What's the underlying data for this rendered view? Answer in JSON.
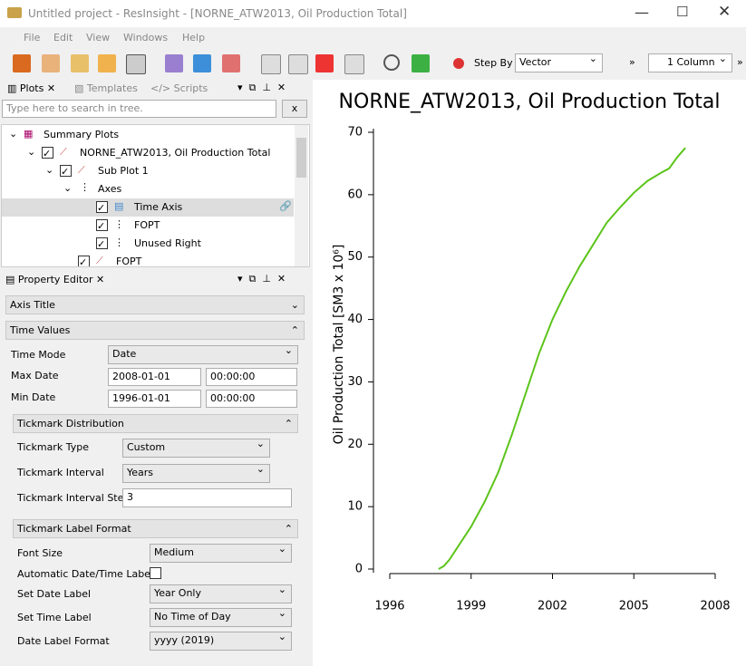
{
  "window": {
    "title": "Untitled project - ResInsight - [NORNE_ATW2013, Oil Production Total]"
  },
  "menu": [
    "File",
    "Edit",
    "View",
    "Windows",
    "Help"
  ],
  "toolbar": {
    "step_by_label": "Step By",
    "step_by_value": "Vector",
    "columns": "1 Column"
  },
  "plots_panel": {
    "tabs": [
      "Plots",
      "Templates",
      "Scripts"
    ],
    "search_placeholder": "Type here to search in tree.",
    "search_button": "x",
    "tree": [
      "Summary Plots",
      "NORNE_ATW2013, Oil Production Total",
      "Sub Plot 1",
      "Axes",
      "Time Axis",
      "FOPT",
      "Unused Right",
      "FOPT"
    ]
  },
  "property_editor": {
    "title": "Property Editor",
    "sections": [
      "Axis Title",
      "Time Values",
      "Tickmark Distribution",
      "Tickmark Label Format"
    ],
    "time_values": [
      [
        "Time Mode",
        "Date"
      ],
      [
        "Max Date",
        "2008-01-01",
        "00:00:00"
      ],
      [
        "Min Date",
        "1996-01-01",
        "00:00:00"
      ]
    ],
    "tickmark_distribution": [
      [
        "Tickmark Type",
        "Custom"
      ],
      [
        "Tickmark Interval",
        "Years"
      ],
      [
        "Tickmark Interval Step",
        "3"
      ]
    ],
    "tickmark_label_format": [
      [
        "Font Size",
        "Medium"
      ],
      [
        "Automatic Date/Time Labels"
      ],
      [
        "Set Date Label",
        "Year Only"
      ],
      [
        "Set Time Label",
        "No Time of Day"
      ],
      [
        "Date Label Format",
        "yyyy (2019)"
      ]
    ]
  },
  "chart_data": {
    "type": "line",
    "title": "NORNE_ATW2013, Oil Production Total",
    "y_label": "Oil Production Total [SM3 x 10⁶]",
    "x": [
      1997.8,
      1998.0,
      1998.2,
      1998.5,
      1999.0,
      1999.5,
      2000.0,
      2000.5,
      2001.0,
      2001.5,
      2002.0,
      2002.5,
      2003.0,
      2003.5,
      2004.0,
      2004.5,
      2005.0,
      2005.5,
      2006.0,
      2006.3,
      2006.6,
      2006.9
    ],
    "values": [
      0,
      0.5,
      1.5,
      3.5,
      6.8,
      10.8,
      15.5,
      21.5,
      28,
      34.5,
      40,
      44.5,
      48.5,
      52,
      55.5,
      58,
      60.3,
      62.2,
      63.5,
      64.2,
      66,
      67.5
    ],
    "color": "#5cc41a",
    "xlim": [
      1996,
      2008
    ],
    "xticks": [
      1996,
      1999,
      2002,
      2005,
      2008
    ],
    "ylim": [
      0,
      70
    ],
    "yticks": [
      0,
      10,
      20,
      30,
      40,
      50,
      60,
      70
    ],
    "grid": false
  }
}
